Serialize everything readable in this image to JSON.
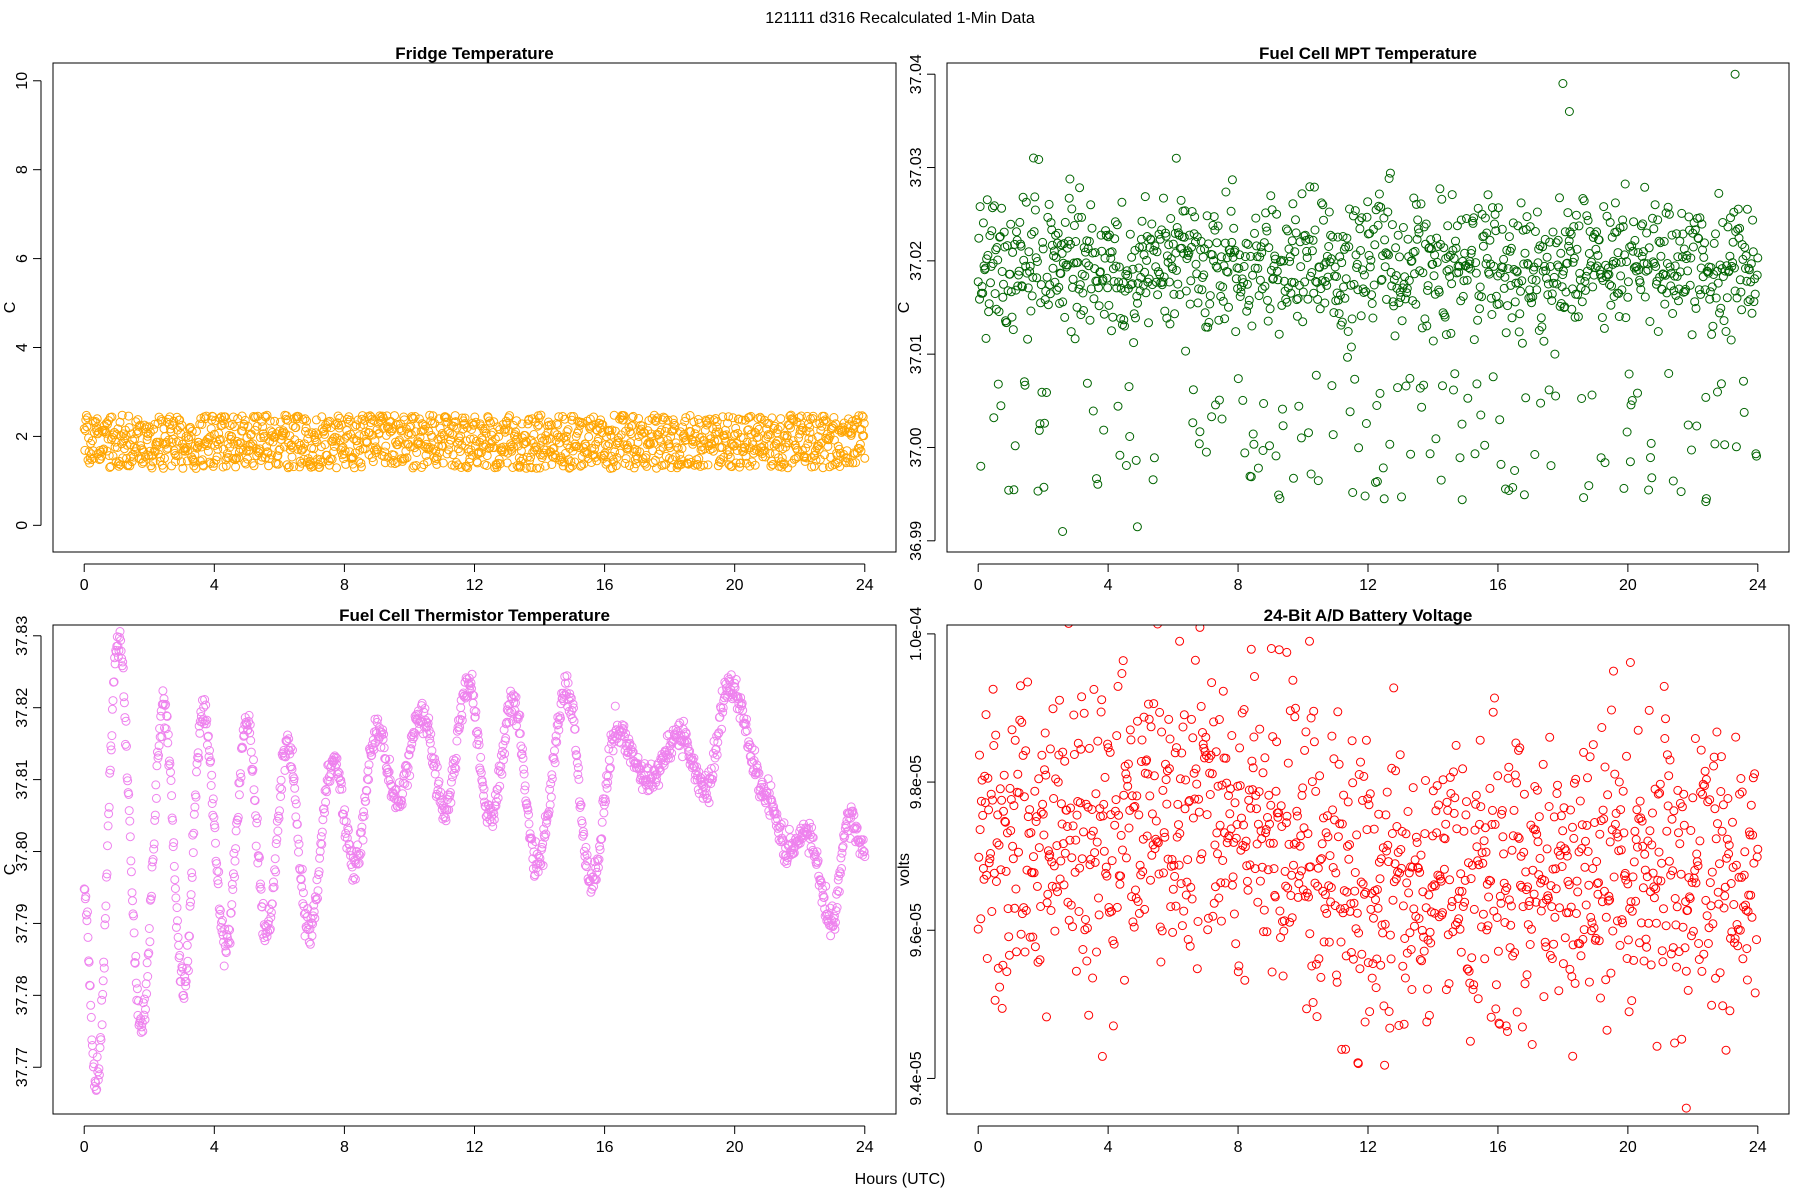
{
  "figure_title": "121111   d316   Recalculated 1-Min Data",
  "shared_xlabel": "Hours (UTC)",
  "chart_data": [
    {
      "id": "fridge",
      "type": "scatter",
      "title": "Fridge Temperature",
      "xlabel": "",
      "ylabel": "C",
      "color": "#FFA500",
      "xlim": [
        -0.96,
        24.96
      ],
      "ylim": [
        -0.6,
        10.4
      ],
      "xticks": [
        0,
        4,
        8,
        12,
        16,
        20,
        24
      ],
      "xtick_labels": [
        "0",
        "4",
        "8",
        "12",
        "16",
        "20",
        "24"
      ],
      "yticks": [
        0,
        2,
        4,
        6,
        8,
        10
      ],
      "ytick_labels": [
        "0",
        "2",
        "4",
        "6",
        "8",
        "10"
      ],
      "pattern": "band",
      "x_range": [
        0,
        24
      ],
      "band": [
        1.28,
        2.48
      ],
      "spike": null,
      "outlier_rate": 0,
      "n_points": 1440
    },
    {
      "id": "fc_mpt",
      "type": "scatter",
      "title": "Fuel Cell MPT Temperature",
      "xlabel": "",
      "ylabel": "C",
      "color": "#006400",
      "xlim": [
        -0.96,
        24.96
      ],
      "ylim": [
        36.9888,
        37.0412
      ],
      "xticks": [
        0,
        4,
        8,
        12,
        16,
        20,
        24
      ],
      "xtick_labels": [
        "0",
        "4",
        "8",
        "12",
        "16",
        "20",
        "24"
      ],
      "yticks": [
        36.99,
        37.0,
        37.01,
        37.02,
        37.03,
        37.04
      ],
      "ytick_labels": [
        "36.99",
        "37.00",
        "37.01",
        "37.02",
        "37.03",
        "37.04"
      ],
      "pattern": "noise",
      "x_range": [
        0,
        24
      ],
      "center": 37.0195,
      "sd": 0.0035,
      "outlier_rate": 0.12,
      "outlier_low": [
        36.9945,
        37.008
      ],
      "extremes": [
        {
          "x": 2.6,
          "y": 36.991
        },
        {
          "x": 4.9,
          "y": 36.9915
        },
        {
          "x": 18.0,
          "y": 37.039
        },
        {
          "x": 23.3,
          "y": 37.04
        },
        {
          "x": 18.2,
          "y": 37.036
        },
        {
          "x": 12.5,
          "y": 36.9945
        },
        {
          "x": 22.4,
          "y": 36.9942
        },
        {
          "x": 14.9,
          "y": 36.9944
        },
        {
          "x": 6.1,
          "y": 37.031
        }
      ],
      "n_points": 1200
    },
    {
      "id": "fc_thermistor",
      "type": "scatter",
      "title": "Fuel Cell Thermistor Temperature",
      "xlabel": "",
      "ylabel": "C",
      "color": "#EE82EE",
      "xlim": [
        -0.96,
        24.96
      ],
      "ylim": [
        37.7635,
        37.8315
      ],
      "xticks": [
        0,
        4,
        8,
        12,
        16,
        20,
        24
      ],
      "xtick_labels": [
        "0",
        "4",
        "8",
        "12",
        "16",
        "20",
        "24"
      ],
      "yticks": [
        37.77,
        37.78,
        37.79,
        37.8,
        37.81,
        37.82,
        37.83
      ],
      "ytick_labels": [
        "37.77",
        "37.78",
        "37.79",
        "37.80",
        "37.81",
        "37.82",
        "37.83"
      ],
      "pattern": "oscillation",
      "x_range": [
        0,
        24
      ],
      "extrema": [
        {
          "x": 0.0,
          "y": 37.795
        },
        {
          "x": 0.35,
          "y": 37.767
        },
        {
          "x": 1.05,
          "y": 37.83
        },
        {
          "x": 1.75,
          "y": 37.776
        },
        {
          "x": 2.45,
          "y": 37.82
        },
        {
          "x": 3.05,
          "y": 37.781
        },
        {
          "x": 3.65,
          "y": 37.82
        },
        {
          "x": 4.35,
          "y": 37.787
        },
        {
          "x": 5.0,
          "y": 37.818
        },
        {
          "x": 5.6,
          "y": 37.788
        },
        {
          "x": 6.25,
          "y": 37.815
        },
        {
          "x": 6.9,
          "y": 37.789
        },
        {
          "x": 7.65,
          "y": 37.813
        },
        {
          "x": 8.3,
          "y": 37.798
        },
        {
          "x": 9.0,
          "y": 37.817
        },
        {
          "x": 9.6,
          "y": 37.807
        },
        {
          "x": 10.4,
          "y": 37.819
        },
        {
          "x": 11.1,
          "y": 37.806
        },
        {
          "x": 11.8,
          "y": 37.823
        },
        {
          "x": 12.5,
          "y": 37.805
        },
        {
          "x": 13.2,
          "y": 37.821
        },
        {
          "x": 13.9,
          "y": 37.798
        },
        {
          "x": 14.85,
          "y": 37.822
        },
        {
          "x": 15.6,
          "y": 37.796
        },
        {
          "x": 16.4,
          "y": 37.817
        },
        {
          "x": 17.3,
          "y": 37.81
        },
        {
          "x": 18.3,
          "y": 37.816
        },
        {
          "x": 19.1,
          "y": 37.809
        },
        {
          "x": 19.85,
          "y": 37.823
        },
        {
          "x": 21.0,
          "y": 37.808
        },
        {
          "x": 21.6,
          "y": 37.8
        },
        {
          "x": 22.2,
          "y": 37.803
        },
        {
          "x": 23.0,
          "y": 37.79
        },
        {
          "x": 23.5,
          "y": 37.805
        },
        {
          "x": 24.0,
          "y": 37.8
        }
      ],
      "noise_sd": 0.0012,
      "n_points": 1440
    },
    {
      "id": "battery_voltage",
      "type": "scatter",
      "title": "24-Bit A/D Battery Voltage",
      "xlabel": "",
      "ylabel": "volts",
      "color": "#FF0000",
      "xlim": [
        -0.96,
        24.96
      ],
      "ylim": [
        9.352e-05,
        0.00010012
      ],
      "xticks": [
        0,
        4,
        8,
        12,
        16,
        20,
        24
      ],
      "xtick_labels": [
        "0",
        "4",
        "8",
        "12",
        "16",
        "20",
        "24"
      ],
      "yticks": [
        9.4e-05,
        9.6e-05,
        9.8e-05,
        0.0001
      ],
      "ytick_labels": [
        "9.4e-05",
        "9.6e-05",
        "9.8e-05",
        "1.0e-04"
      ],
      "pattern": "trend_noise",
      "x_range": [
        0,
        24
      ],
      "trend": [
        {
          "x": 0,
          "y": 9.7e-05
        },
        {
          "x": 4,
          "y": 9.74e-05
        },
        {
          "x": 8,
          "y": 9.76e-05
        },
        {
          "x": 12,
          "y": 9.65e-05
        },
        {
          "x": 16,
          "y": 9.67e-05
        },
        {
          "x": 20,
          "y": 9.68e-05
        },
        {
          "x": 24,
          "y": 9.7e-05
        }
      ],
      "sd": 1e-06,
      "extremes": [
        {
          "x": 10.2,
          "y": 9.99e-05
        },
        {
          "x": 6.2,
          "y": 9.99e-05
        },
        {
          "x": 21.8,
          "y": 9.36e-05
        },
        {
          "x": 11.7,
          "y": 9.42e-05
        },
        {
          "x": 18.3,
          "y": 9.43e-05
        },
        {
          "x": 9.5,
          "y": 9.975e-05
        }
      ],
      "n_points": 1200
    }
  ]
}
